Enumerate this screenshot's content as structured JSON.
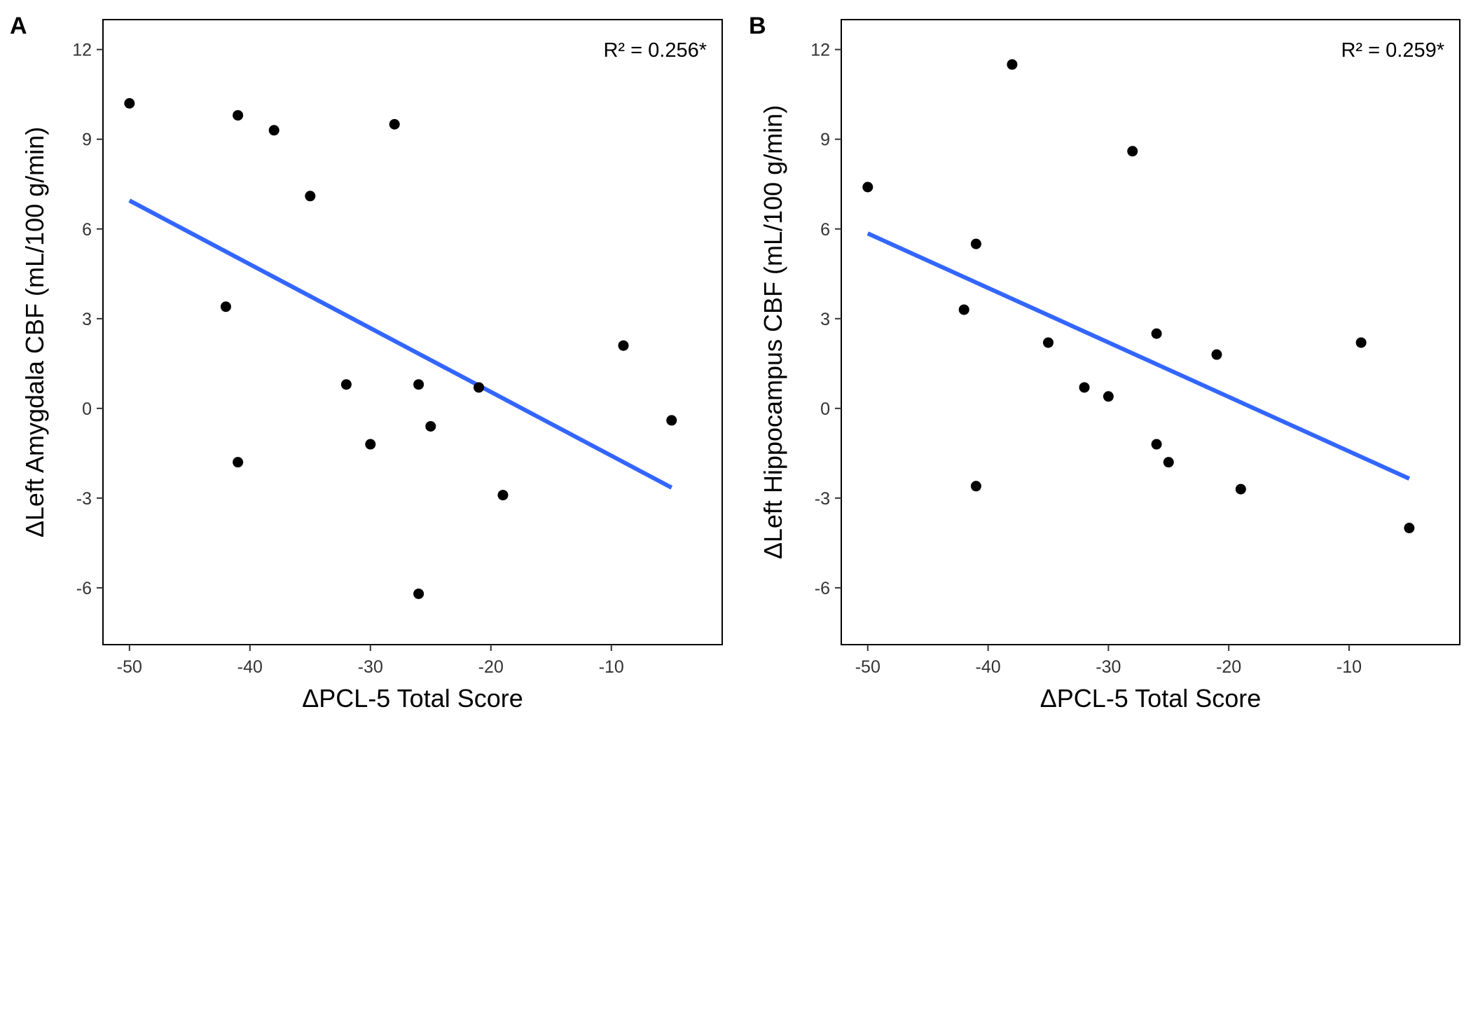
{
  "chart_data": [
    {
      "type": "scatter",
      "panel_label": "A",
      "xlabel": "ΔPCL-5 Total Score",
      "ylabel": "ΔLeft Amygdala CBF (mL/100 g/min)",
      "annotation": "R² = 0.256*",
      "xlim": [
        -52.2,
        -0.8
      ],
      "ylim": [
        -7.9,
        13.0
      ],
      "xticks": [
        -50,
        -40,
        -30,
        -20,
        -10
      ],
      "yticks": [
        -6,
        -3,
        0,
        3,
        6,
        9,
        12
      ],
      "grid": false,
      "points": [
        {
          "x": -50,
          "y": 10.2
        },
        {
          "x": -41,
          "y": 9.8
        },
        {
          "x": -38,
          "y": 9.3
        },
        {
          "x": -28,
          "y": 9.5
        },
        {
          "x": -35,
          "y": 7.1
        },
        {
          "x": -42,
          "y": 3.4
        },
        {
          "x": -9,
          "y": 2.1
        },
        {
          "x": -32,
          "y": 0.8
        },
        {
          "x": -26,
          "y": 0.8
        },
        {
          "x": -21,
          "y": 0.7
        },
        {
          "x": -5,
          "y": -0.4
        },
        {
          "x": -25,
          "y": -0.6
        },
        {
          "x": -30,
          "y": -1.2
        },
        {
          "x": -41,
          "y": -1.8
        },
        {
          "x": -19,
          "y": -2.9
        },
        {
          "x": -26,
          "y": -6.2
        }
      ],
      "fit_line": {
        "x": [
          -50,
          -5
        ],
        "y": [
          6.95,
          -2.65
        ],
        "color": "#3366FF"
      }
    },
    {
      "type": "scatter",
      "panel_label": "B",
      "xlabel": "ΔPCL-5 Total Score",
      "ylabel": "ΔLeft Hippocampus CBF (mL/100 g/min)",
      "annotation": "R² = 0.259*",
      "xlim": [
        -52.2,
        -0.8
      ],
      "ylim": [
        -7.9,
        13.0
      ],
      "xticks": [
        -50,
        -40,
        -30,
        -20,
        -10
      ],
      "yticks": [
        -6,
        -3,
        0,
        3,
        6,
        9,
        12
      ],
      "grid": false,
      "points": [
        {
          "x": -38,
          "y": 11.5
        },
        {
          "x": -28,
          "y": 8.6
        },
        {
          "x": -50,
          "y": 7.4
        },
        {
          "x": -41,
          "y": 5.5
        },
        {
          "x": -42,
          "y": 3.3
        },
        {
          "x": -26,
          "y": 2.5
        },
        {
          "x": -9,
          "y": 2.2
        },
        {
          "x": -35,
          "y": 2.2
        },
        {
          "x": -21,
          "y": 1.8
        },
        {
          "x": -32,
          "y": 0.7
        },
        {
          "x": -30,
          "y": 0.4
        },
        {
          "x": -26,
          "y": -1.2
        },
        {
          "x": -25,
          "y": -1.8
        },
        {
          "x": -41,
          "y": -2.6
        },
        {
          "x": -19,
          "y": -2.7
        },
        {
          "x": -5,
          "y": -4.0
        }
      ],
      "fit_line": {
        "x": [
          -50,
          -5
        ],
        "y": [
          5.85,
          -2.35
        ],
        "color": "#3366FF"
      }
    }
  ]
}
